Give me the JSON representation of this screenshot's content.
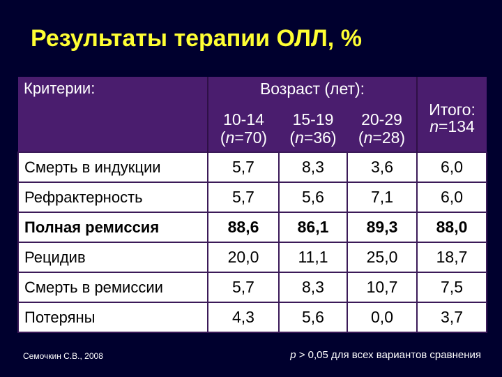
{
  "header": {
    "title": "Результаты терапии ОЛЛ, %"
  },
  "table": {
    "criteria_label": "Критерии:",
    "age_label": "Возраст (лет):",
    "total_label": "Итого:",
    "total_n": "n=134",
    "age_groups": [
      {
        "range": "10-14",
        "n": "(n=70)"
      },
      {
        "range": "15-19",
        "n": "(n=36)"
      },
      {
        "range": "20-29",
        "n": "(n=28)"
      }
    ],
    "rows": [
      [
        "Смерть в индукции",
        "5,7",
        "8,3",
        "3,6",
        "6,0"
      ],
      [
        "Рефрактерность",
        "5,7",
        "5,6",
        "7,1",
        "6,0"
      ],
      [
        "Полная ремиссия",
        "88,6",
        "86,1",
        "89,3",
        "88,0"
      ],
      [
        "Рецидив",
        "20,0",
        "11,1",
        "25,0",
        "18,7"
      ],
      [
        "Смерть в ремиссии",
        "5,7",
        "8,3",
        "10,7",
        "7,5"
      ],
      [
        "Потеряны",
        "4,3",
        "5,6",
        "0,0",
        "3,7"
      ]
    ]
  },
  "footer": {
    "source": "Семочкин С.В., 2008",
    "note": "p > 0,05 для всех вариантов сравнения"
  }
}
